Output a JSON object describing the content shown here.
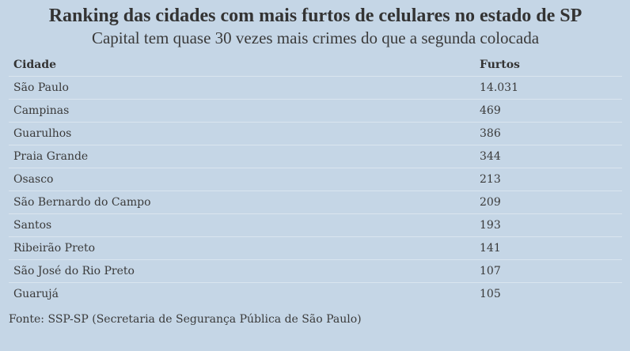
{
  "title": "Ranking das cidades com mais furtos de celulares no estado de SP",
  "subtitle": "Capital tem quase 30 vezes mais crimes do que a segunda colocada",
  "table": {
    "headers": [
      "Cidade",
      "Furtos"
    ],
    "rows": [
      [
        "São Paulo",
        "14.031"
      ],
      [
        "Campinas",
        "469"
      ],
      [
        "Guarulhos",
        "386"
      ],
      [
        "Praia Grande",
        "344"
      ],
      [
        "Osasco",
        "213"
      ],
      [
        "São Bernardo do Campo",
        "209"
      ],
      [
        "Santos",
        "193"
      ],
      [
        "Ribeirão Preto",
        "141"
      ],
      [
        "São José do Rio Preto",
        "107"
      ],
      [
        "Guarujá",
        "105"
      ]
    ]
  },
  "footer": "Fonte: SSP-SP (Secretaria de Segurança Pública de São Paulo)"
}
